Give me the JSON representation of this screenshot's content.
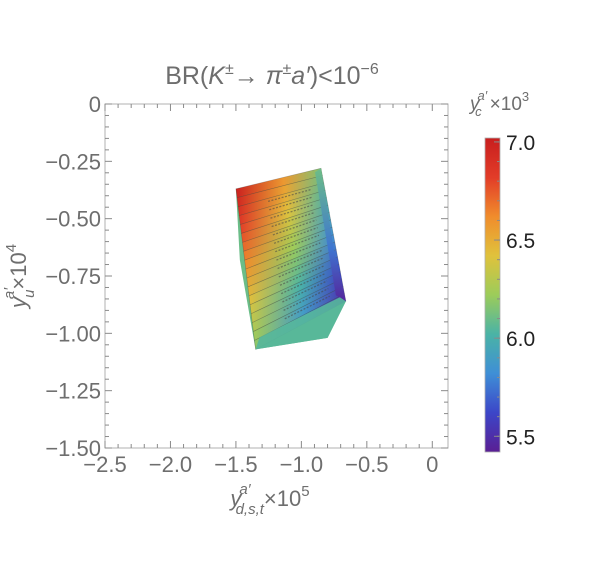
{
  "chart_data": {
    "type": "3d-surface-projection",
    "title": "BR(K±→ π±a′)<10⁻⁶",
    "title_parts": {
      "br": "BR(",
      "k": "K",
      "kpm": "±",
      "arrow": "→ ",
      "pi": "π",
      "pipm": "±",
      "a": "a′",
      "close": ")<10",
      "exp": "−6"
    },
    "xaxis": {
      "label_var": "y",
      "label_sup": "a′",
      "label_sub": "d,s,t",
      "label_scale": "×10",
      "label_exp": "5",
      "range": [
        -2.5,
        0.12
      ],
      "ticks": [
        -2.5,
        -2.0,
        -1.5,
        -1.0,
        -0.5,
        0
      ],
      "tick_labels": [
        "−2.5",
        "−2.0",
        "−1.5",
        "−1.0",
        "−0.5",
        "0"
      ]
    },
    "yaxis": {
      "label_var": "y",
      "label_sup": "a′",
      "label_sub": "u",
      "label_scale": "×10",
      "label_exp": "4",
      "range": [
        -1.5,
        0
      ],
      "ticks": [
        0,
        -0.25,
        -0.5,
        -0.75,
        -1.0,
        -1.25,
        -1.5
      ],
      "tick_labels": [
        "0",
        "−0.25",
        "−0.50",
        "−0.75",
        "−1.00",
        "−1.25",
        "−1.50"
      ]
    },
    "colorbar": {
      "label_var": "y",
      "label_sup": "a′",
      "label_sub": "c",
      "label_scale": "×10",
      "label_exp": "3",
      "range": [
        5.42,
        7.02
      ],
      "ticks": [
        7.0,
        6.5,
        6.0,
        5.5
      ],
      "tick_labels": [
        "7.0",
        "6.5",
        "6.0",
        "5.5"
      ],
      "colormap": [
        "#5a1f94",
        "#3c46c8",
        "#3f8fd6",
        "#4ab3a6",
        "#9ccc5a",
        "#e0c23c",
        "#f08c2c",
        "#e23c28",
        "#c81e1e"
      ]
    },
    "region": {
      "description_values": "allowed region in (x, y) with color = y_c",
      "outline": [
        {
          "x": -1.5,
          "y": -0.37
        },
        {
          "x": -1.33,
          "y": -0.35
        },
        {
          "x": -0.85,
          "y": -0.28
        },
        {
          "x": -0.75,
          "y": -0.64
        },
        {
          "x": -0.66,
          "y": -0.86
        },
        {
          "x": -0.8,
          "y": -1.02
        },
        {
          "x": -1.35,
          "y": -1.07
        },
        {
          "x": -1.47,
          "y": -0.68
        }
      ],
      "slices": 18,
      "yc_front_left": 7.0,
      "yc_back_right": 5.45
    }
  }
}
